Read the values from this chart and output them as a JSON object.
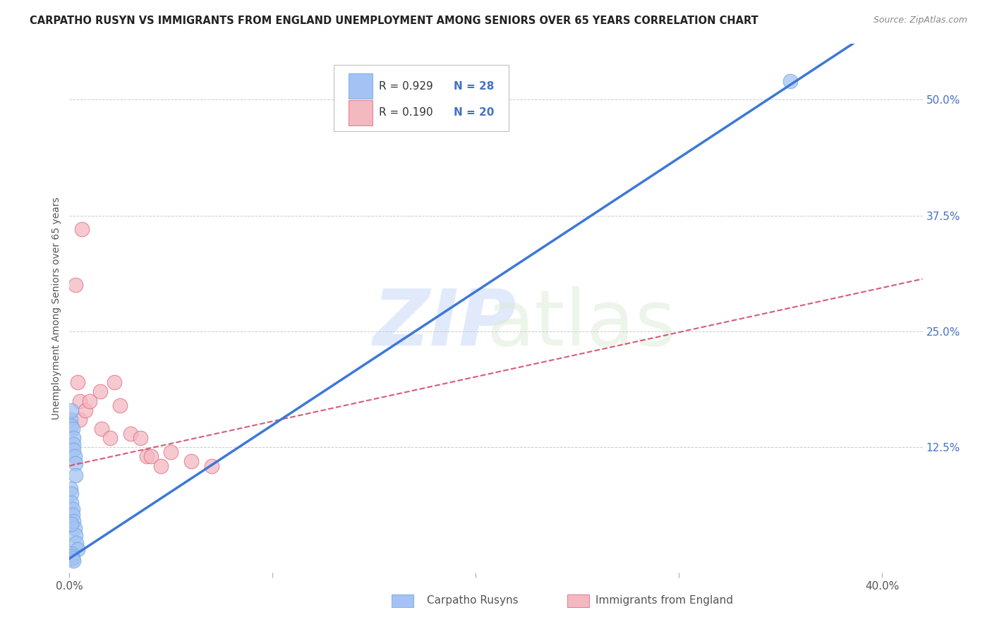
{
  "title": "CARPATHO RUSYN VS IMMIGRANTS FROM ENGLAND UNEMPLOYMENT AMONG SENIORS OVER 65 YEARS CORRELATION CHART",
  "source": "Source: ZipAtlas.com",
  "ylabel": "Unemployment Among Seniors over 65 years",
  "xlim": [
    0.0,
    0.42
  ],
  "ylim": [
    -0.01,
    0.56
  ],
  "xticks": [
    0.0,
    0.1,
    0.2,
    0.3,
    0.4
  ],
  "xtick_labels": [
    "0.0%",
    "",
    "",
    "",
    "40.0%"
  ],
  "yticks_right": [
    0.0,
    0.125,
    0.25,
    0.375,
    0.5
  ],
  "ytick_labels_right": [
    "",
    "12.5%",
    "25.0%",
    "37.5%",
    "50.0%"
  ],
  "right_axis_color": "#4472c4",
  "text_color": "#4472c4",
  "blue_scatter_color": "#a4c2f4",
  "blue_edge_color": "#6fa8dc",
  "pink_scatter_color": "#f4b8c1",
  "pink_edge_color": "#e06c80",
  "blue_line_color": "#3c78d8",
  "pink_line_color": "#cc3355",
  "background_color": "#ffffff",
  "blue_slope": 1.44,
  "blue_intercept": 0.005,
  "pink_slope": 0.48,
  "pink_intercept": 0.105,
  "blue_x": [
    0.0005,
    0.001,
    0.001,
    0.0015,
    0.002,
    0.002,
    0.002,
    0.0025,
    0.003,
    0.003,
    0.0005,
    0.001,
    0.001,
    0.0015,
    0.0015,
    0.002,
    0.0025,
    0.003,
    0.0035,
    0.004,
    0.0005,
    0.0008,
    0.001,
    0.0012,
    0.0015,
    0.002,
    0.001,
    0.355
  ],
  "blue_y": [
    0.155,
    0.165,
    0.148,
    0.145,
    0.135,
    0.128,
    0.122,
    0.115,
    0.108,
    0.095,
    0.08,
    0.075,
    0.065,
    0.058,
    0.052,
    0.045,
    0.038,
    0.03,
    0.022,
    0.015,
    0.008,
    0.005,
    0.01,
    0.007,
    0.005,
    0.003,
    0.042,
    0.52
  ],
  "pink_x": [
    0.004,
    0.005,
    0.005,
    0.008,
    0.01,
    0.015,
    0.016,
    0.02,
    0.022,
    0.025,
    0.03,
    0.035,
    0.038,
    0.04,
    0.045,
    0.05,
    0.06,
    0.07,
    0.003,
    0.006
  ],
  "pink_y": [
    0.195,
    0.175,
    0.155,
    0.165,
    0.175,
    0.185,
    0.145,
    0.135,
    0.195,
    0.17,
    0.14,
    0.135,
    0.115,
    0.115,
    0.105,
    0.12,
    0.11,
    0.105,
    0.3,
    0.36
  ]
}
